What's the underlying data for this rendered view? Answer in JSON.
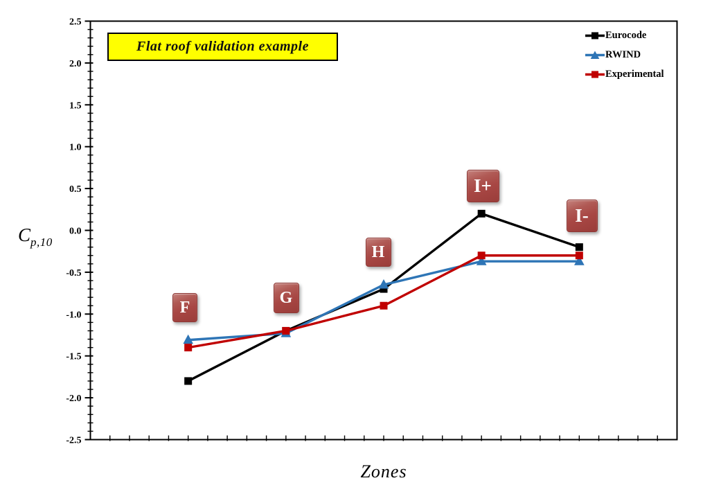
{
  "chart": {
    "title": "Flat roof validation example",
    "xlabel": "Zones",
    "ylabel_main": "C",
    "ylabel_sub": "p,10"
  },
  "chart_data": {
    "type": "line",
    "title": "Flat roof validation example",
    "xlabel": "Zones",
    "ylabel": "C_p,10",
    "categories": [
      "F",
      "G",
      "H",
      "I+",
      "I-"
    ],
    "series": [
      {
        "name": "Eurocode",
        "color": "#000000",
        "marker": "square",
        "values": [
          -1.8,
          -1.2,
          -0.7,
          0.2,
          -0.2
        ]
      },
      {
        "name": "RWIND",
        "color": "#2E75B6",
        "marker": "triangle",
        "values": [
          -1.31,
          -1.23,
          -0.65,
          -0.37,
          -0.37
        ]
      },
      {
        "name": "Experimental",
        "color": "#C00000",
        "marker": "square",
        "values": [
          -1.4,
          -1.2,
          -0.9,
          -0.3,
          -0.3
        ]
      }
    ],
    "ylim": [
      -2.5,
      2.5
    ],
    "ytick_step": 0.5,
    "y_minor_step": 0.1,
    "x_minor_divisions": 30,
    "grid": false,
    "legend_position": "top-right",
    "frame": true,
    "title_box": {
      "background": "#FFFF00",
      "border": "#000000"
    },
    "zone_label_style": {
      "fill": "#A84744",
      "text_color": "#FFFFFF"
    }
  }
}
